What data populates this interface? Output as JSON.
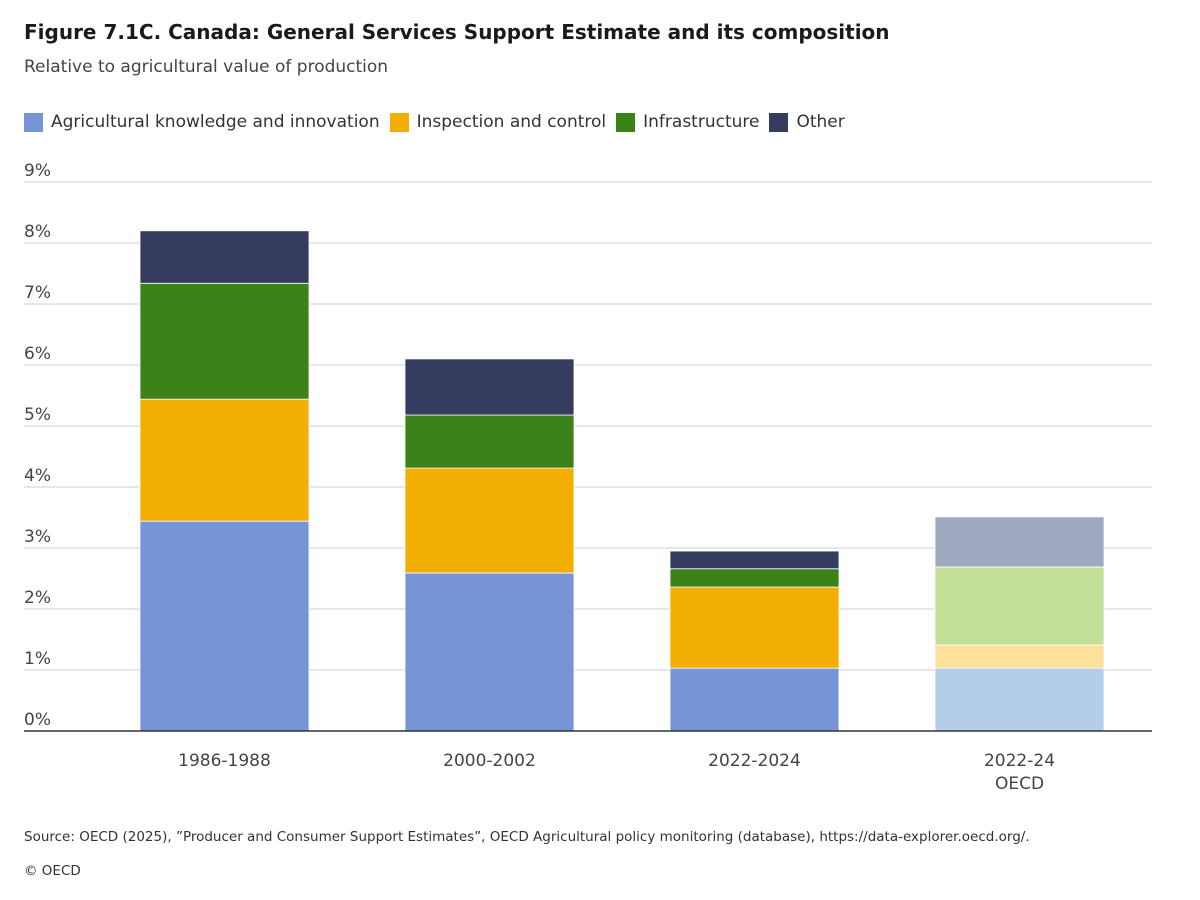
{
  "chart_data": {
    "type": "bar",
    "stacked": true,
    "title": "Figure 7.1C. Canada: General Services Support Estimate and its composition",
    "subtitle": "Relative to agricultural value of production",
    "categories": [
      [
        "1986-1988"
      ],
      [
        "2000-2002"
      ],
      [
        "2022-2024"
      ],
      [
        "2022-24",
        "OECD"
      ]
    ],
    "series": [
      {
        "name": "Agricultural knowledge and innovation",
        "color": "#7794d6",
        "light_color": "#b3cdeb",
        "values": [
          3.44,
          2.59,
          1.03,
          1.03
        ]
      },
      {
        "name": "Inspection and control",
        "color": "#f2ae03",
        "light_color": "#fde19b",
        "values": [
          2.0,
          1.72,
          1.33,
          0.38
        ]
      },
      {
        "name": "Infrastructure",
        "color": "#3b8219",
        "light_color": "#c4df98",
        "values": [
          1.9,
          0.87,
          0.3,
          1.28
        ]
      },
      {
        "name": "Other",
        "color": "#353c5f",
        "light_color": "#9ea9bf",
        "values": [
          0.86,
          0.92,
          0.29,
          0.82
        ]
      }
    ],
    "highlighted_category_uses_light_colors": "2022-24 OECD",
    "ylim": [
      0,
      9
    ],
    "yticks": [
      "0%",
      "1%",
      "2%",
      "3%",
      "4%",
      "5%",
      "6%",
      "7%",
      "8%",
      "9%"
    ],
    "grid": true,
    "legend": "top-left",
    "xlabel": "",
    "ylabel": ""
  },
  "source": "Source: OECD (2025), ”Producer and Consumer Support Estimates”, OECD Agricultural policy monitoring (database), https://data-explorer.oecd.org/.",
  "copyright": "© OECD"
}
